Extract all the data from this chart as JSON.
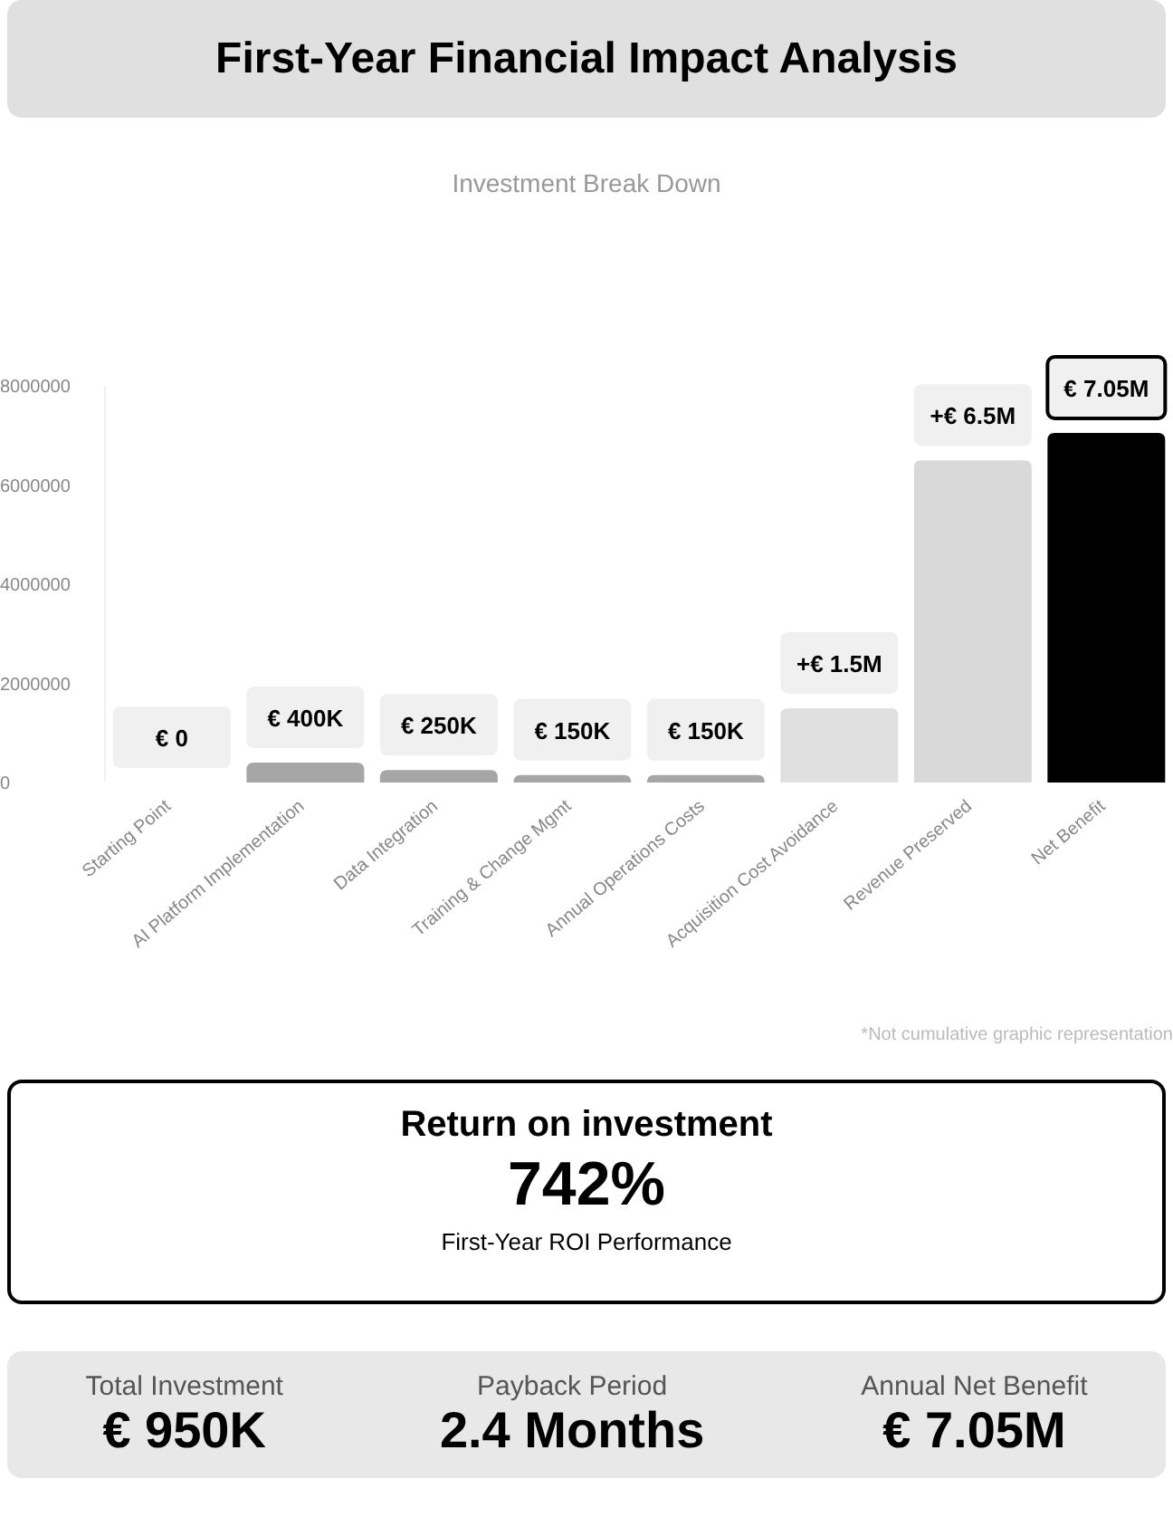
{
  "chart_data": {
    "type": "bar",
    "title": "First-Year Financial Impact Analysis",
    "subtitle": "Investment Break Down",
    "categories": [
      "Starting Point",
      "AI Platform Implementation",
      "Data Integration",
      "Training & Change Mgmt",
      "Annual Operations Costs",
      "Acquisition Cost Avoidance",
      "Revenue Preserved",
      "Net Benefit"
    ],
    "values": [
      0,
      400000,
      250000,
      150000,
      150000,
      1500000,
      6500000,
      7050000
    ],
    "colors": [
      "#f0f0f0",
      "#a6a6a6",
      "#a6a6a6",
      "#a6a6a6",
      "#a6a6a6",
      "#e0e0e0",
      "#d9d9d9",
      "#000000"
    ],
    "value_labels": [
      "€ 0",
      "€ 400K",
      "€ 250K",
      "€ 150K",
      "€ 150K",
      "+€ 1.5M",
      "+€ 6.5M",
      "€ 7.05M"
    ],
    "ylim": [
      0,
      8000000
    ],
    "yticks": [
      0,
      2000000,
      4000000,
      6000000,
      8000000
    ],
    "grid": false,
    "legend": false,
    "annotations": [
      "*Not cumulative graphic representation",
      "Return on investment",
      "742%",
      "First-Year ROI Performance",
      "Total Investment",
      "€ 950K",
      "Payback Period",
      "2.4 Months",
      "Annual Net Benefit",
      "€ 7.05M"
    ]
  }
}
